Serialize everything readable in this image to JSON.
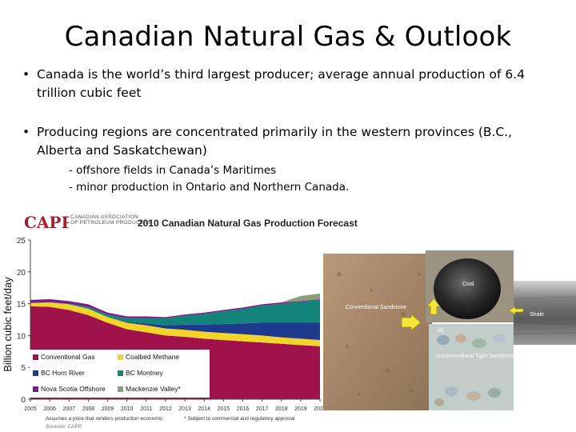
{
  "slide": {
    "title": "Canadian Natural Gas & Outlook",
    "bullets": [
      {
        "dot": "•",
        "text": "Canada is the world’s third largest producer; average annual production of 6.4 trillion cubic feet"
      },
      {
        "dot": "•",
        "text": "Producing regions are concentrated primarily in the western provinces (B.C., Alberta and Saskatchewan)"
      }
    ],
    "sub_bullets": [
      "- offshore fields in Canada’s Maritimes",
      "- minor production in Ontario and Northern Canada."
    ]
  },
  "capp": {
    "logo_text": "CAPP",
    "org_line1": "CANADIAN ASSOCIATION",
    "org_line2": "OF PETROLEUM PRODUCERS"
  },
  "chart_data": {
    "type": "area",
    "title": "2010 Canadian Natural Gas Production Forecast",
    "ylabel": "Billion cubic feet/day",
    "xlabel": "",
    "ylim": [
      0,
      25
    ],
    "yticks": [
      "0",
      "5",
      "10",
      "15",
      "20",
      "25"
    ],
    "x": [
      "2005",
      "2006",
      "2007",
      "2008",
      "2009",
      "2010",
      "2011",
      "2012",
      "2013",
      "2014",
      "2015",
      "2016",
      "2017",
      "2018",
      "2019",
      "2020"
    ],
    "series": [
      {
        "name": "Conventional Gas",
        "color": "#a0134a",
        "values": [
          14.6,
          14.5,
          14.0,
          13.2,
          12.0,
          11.0,
          10.5,
          10.0,
          9.8,
          9.5,
          9.3,
          9.1,
          8.9,
          8.7,
          8.5,
          8.3
        ]
      },
      {
        "name": "Coalbed Methane",
        "color": "#f2d42a",
        "values": [
          0.5,
          0.7,
          0.9,
          1.0,
          0.9,
          1.0,
          1.1,
          1.1,
          1.1,
          1.1,
          1.1,
          1.1,
          1.1,
          1.0,
          1.0,
          1.0
        ]
      },
      {
        "name": "BC Horn River",
        "color": "#1f3a8c",
        "values": [
          0,
          0,
          0,
          0,
          0,
          0.1,
          0.3,
          0.5,
          0.8,
          1.1,
          1.4,
          1.7,
          2.0,
          2.3,
          2.5,
          2.7
        ]
      },
      {
        "name": "BC Montney",
        "color": "#13847a",
        "values": [
          0,
          0,
          0.1,
          0.3,
          0.4,
          0.6,
          0.8,
          1.1,
          1.4,
          1.7,
          2.0,
          2.3,
          2.7,
          3.0,
          3.3,
          3.6
        ]
      },
      {
        "name": "Nova Scotia Offshore",
        "color": "#7a1d8a",
        "values": [
          0.5,
          0.5,
          0.4,
          0.4,
          0.3,
          0.3,
          0.3,
          0.2,
          0.2,
          0.2,
          0.2,
          0.2,
          0.2,
          0.2,
          0.1,
          0.1
        ]
      },
      {
        "name": "Mackenzie Valley*",
        "color": "#8c9e78",
        "values": [
          0,
          0,
          0,
          0,
          0,
          0,
          0,
          0,
          0,
          0,
          0,
          0,
          0,
          0,
          0.8,
          0.9
        ]
      }
    ],
    "footnote_left": "Assumes a price that renders production economic",
    "footnote_right": "* Subject to commercial and regulatory approval",
    "source": "Sources: CAPP",
    "grid": false,
    "legend_placement": "bottom-left"
  },
  "photo": {
    "labels": {
      "coal": "Coal",
      "shale": "Shale",
      "conventional": "Conventional Sandstone",
      "d": "(d)",
      "unconventional": "Unconventional Tight Sandstone"
    }
  }
}
